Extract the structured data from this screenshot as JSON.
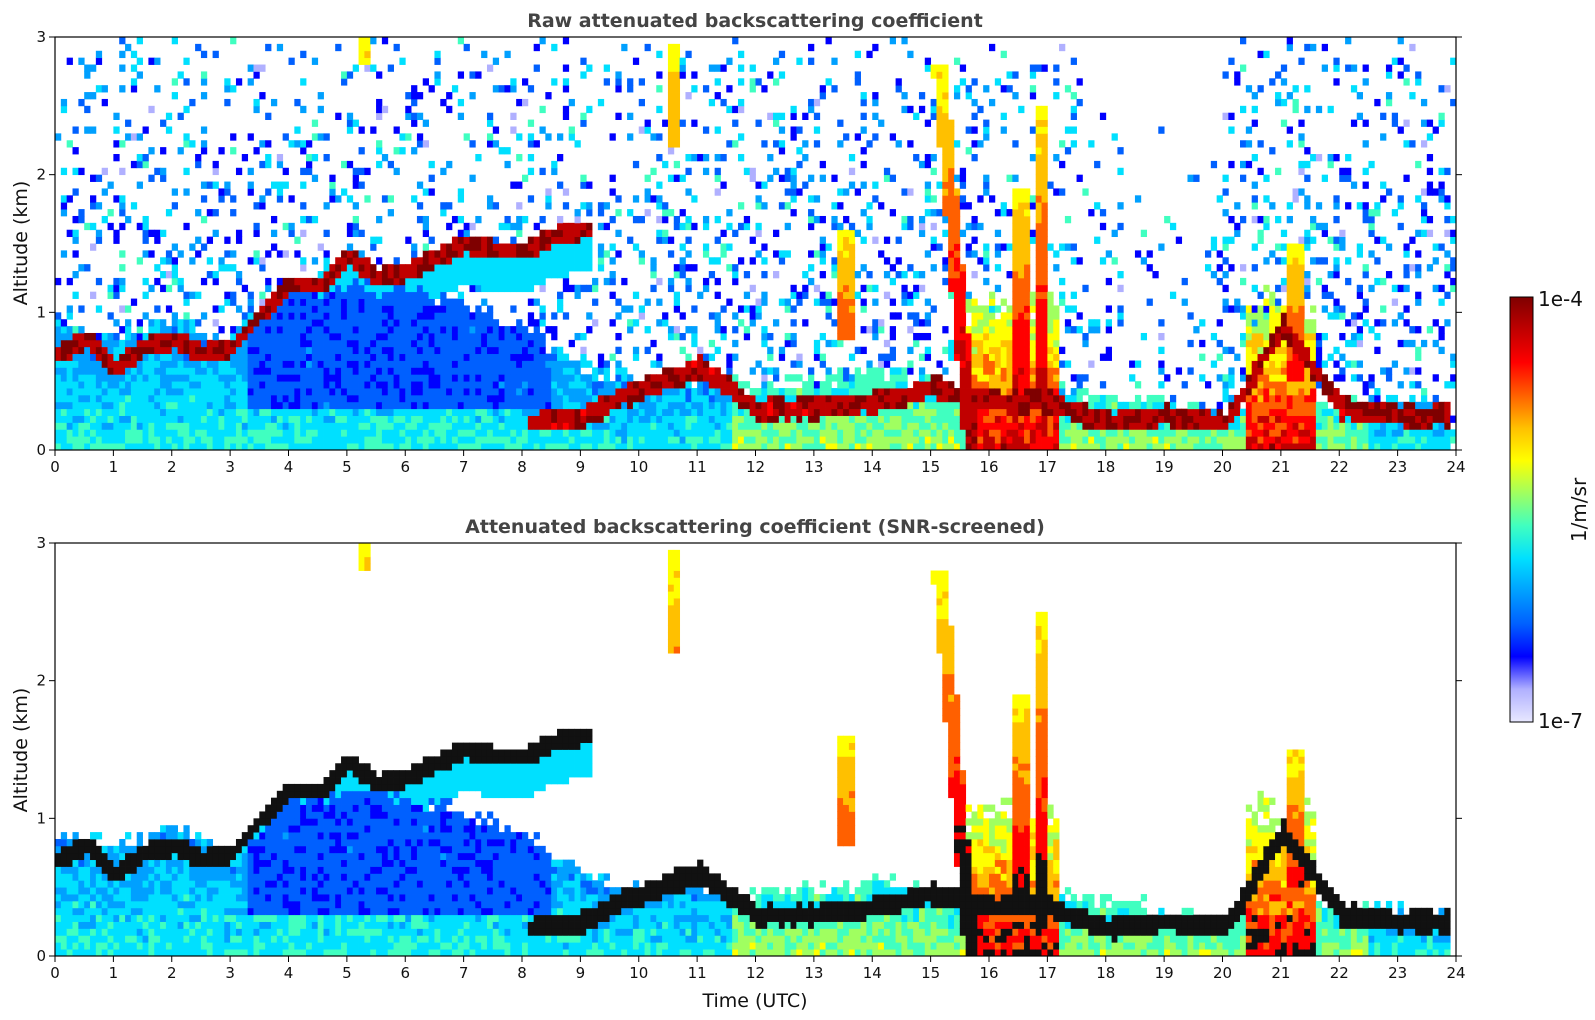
{
  "chart_data": [
    {
      "type": "heatmap",
      "title": "Raw attenuated backscattering coefficient",
      "xlabel": "",
      "ylabel": "Altitude (km)",
      "xlim": [
        0,
        24
      ],
      "ylim": [
        0,
        3
      ],
      "x_ticks": [
        "0",
        "1",
        "2",
        "3",
        "4",
        "5",
        "6",
        "7",
        "8",
        "9",
        "10",
        "11",
        "12",
        "13",
        "14",
        "15",
        "16",
        "17",
        "18",
        "19",
        "20",
        "21",
        "22",
        "23",
        "24"
      ],
      "y_ticks": [
        "0",
        "1",
        "2",
        "3"
      ],
      "screened": false,
      "colorscale": "jet",
      "value_scale": "log",
      "layers": [
        {
          "name": "boundary layer",
          "x": [
            0,
            1,
            2,
            3,
            4,
            5,
            6,
            7,
            8,
            9,
            10,
            11,
            12,
            13,
            14,
            15,
            16,
            17,
            18,
            19,
            20,
            21,
            22,
            23,
            23.8
          ],
          "top_km": [
            0.9,
            0.8,
            0.95,
            0.75,
            1.15,
            1.2,
            1.15,
            1.05,
            0.9,
            0.6,
            0.5,
            0.5,
            0.45,
            0.5,
            0.55,
            0.5,
            0.4,
            0.45,
            0.4,
            0.35,
            0.25,
            0.4,
            0.35,
            0.35,
            0.35
          ]
        },
        {
          "name": "cloud base",
          "x": [
            0,
            0.5,
            1,
            1.5,
            2,
            2.5,
            3,
            3.5,
            4,
            4.5,
            5,
            5.5,
            6,
            6.5,
            7,
            7.5,
            8,
            8.5,
            9
          ],
          "height_km": [
            0.7,
            0.8,
            0.6,
            0.75,
            0.8,
            0.7,
            0.75,
            1.0,
            1.2,
            1.2,
            1.4,
            1.25,
            1.3,
            1.4,
            1.5,
            1.45,
            1.45,
            1.55,
            1.6
          ]
        },
        {
          "name": "aerosol layer",
          "x": [
            8,
            9,
            10,
            11,
            12,
            13,
            14,
            15,
            16,
            17,
            18,
            19,
            20,
            21,
            22,
            23,
            23.8
          ],
          "height_km": [
            0.2,
            0.25,
            0.45,
            0.6,
            0.3,
            0.3,
            0.35,
            0.45,
            0.35,
            0.35,
            0.2,
            0.25,
            0.2,
            0.9,
            0.3,
            0.25,
            0.25
          ]
        }
      ],
      "plumes": [
        {
          "x": 15.1,
          "base_km": 0,
          "top_km": 2.8
        },
        {
          "x": 16.5,
          "base_km": 0.3,
          "top_km": 1.9
        },
        {
          "x": 16.85,
          "base_km": 0.3,
          "top_km": 2.5
        },
        {
          "x": 10.55,
          "base_km": 2.2,
          "top_km": 2.95
        },
        {
          "x": 5.25,
          "base_km": 2.8,
          "top_km": 3.0
        },
        {
          "x": 21.2,
          "base_km": 0.5,
          "top_km": 1.5
        },
        {
          "x": 13.5,
          "base_km": 0.8,
          "top_km": 1.6
        }
      ]
    },
    {
      "type": "heatmap",
      "title": "Attenuated backscattering coefficient (SNR-screened)",
      "xlabel": "Time (UTC)",
      "ylabel": "Altitude (km)",
      "xlim": [
        0,
        24
      ],
      "ylim": [
        0,
        3
      ],
      "x_ticks": [
        "0",
        "1",
        "2",
        "3",
        "4",
        "5",
        "6",
        "7",
        "8",
        "9",
        "10",
        "11",
        "12",
        "13",
        "14",
        "15",
        "16",
        "17",
        "18",
        "19",
        "20",
        "21",
        "22",
        "23",
        "24"
      ],
      "y_ticks": [
        "0",
        "1",
        "2",
        "3"
      ],
      "screened": true,
      "colorscale": "jet",
      "value_scale": "log"
    }
  ],
  "colorbar": {
    "label": "1/m/sr",
    "max_label": "1e-4",
    "min_label": "1e-7",
    "range": [
      1e-07,
      0.0001
    ],
    "colors": [
      "#e8e8ff",
      "#b0b0ff",
      "#0000ff",
      "#0060ff",
      "#00a0ff",
      "#00e0ff",
      "#40ffc0",
      "#a0ff60",
      "#ffff00",
      "#ffc000",
      "#ff6000",
      "#ff0000",
      "#c00000",
      "#7f0000"
    ]
  }
}
